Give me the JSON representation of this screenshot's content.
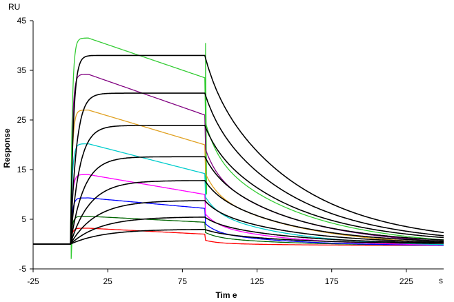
{
  "chart_data": {
    "type": "line",
    "title": "",
    "xlabel": "Tim e",
    "ylabel": "Response",
    "x_unit": "s",
    "y_unit": "RU",
    "xlim": [
      -25,
      250
    ],
    "ylim": [
      -5,
      45
    ],
    "x_ticks": [
      -25,
      25,
      75,
      125,
      175,
      225
    ],
    "y_ticks": [
      -5,
      5,
      15,
      25,
      35,
      45
    ],
    "grid": false,
    "legend": "none",
    "injection": {
      "start": 0,
      "end": 90,
      "baseline": 0
    },
    "series": [
      {
        "color": "#ff0000",
        "model": {
          "peak": 3.2,
          "peak_time": 12,
          "end_assoc": 2.0,
          "dissoc_jump": 1.2,
          "fast_amp": 0.6,
          "fast_tau": 8,
          "slow_tau": 55,
          "end": -0.3
        }
      },
      {
        "color": "#006400",
        "model": {
          "peak": 5.6,
          "peak_time": 12,
          "end_assoc": 4.4,
          "dissoc_jump": 2.0,
          "fast_amp": 1.0,
          "fast_tau": 8,
          "slow_tau": 55,
          "end": -0.3
        }
      },
      {
        "color": "#0000ff",
        "model": {
          "peak": 9.3,
          "peak_time": 12,
          "end_assoc": 7.2,
          "dissoc_jump": 3.0,
          "fast_amp": 1.8,
          "fast_tau": 8,
          "slow_tau": 55,
          "end": -0.4
        }
      },
      {
        "color": "#ff00ff",
        "model": {
          "peak": 14.0,
          "peak_time": 12,
          "end_assoc": 10.0,
          "dissoc_jump": 3.8,
          "fast_amp": 2.2,
          "fast_tau": 8,
          "slow_tau": 55,
          "end": -0.4
        }
      },
      {
        "color": "#00cccc",
        "model": {
          "peak": 20.2,
          "peak_time": 12,
          "end_assoc": 14.2,
          "dissoc_jump": 4.5,
          "fast_amp": 3.0,
          "fast_tau": 8,
          "slow_tau": 55,
          "end": -0.5
        }
      },
      {
        "color": "#e0a020",
        "model": {
          "peak": 27.0,
          "peak_time": 12,
          "end_assoc": 20.0,
          "dissoc_jump": 5.5,
          "fast_amp": 4.0,
          "fast_tau": 8,
          "slow_tau": 60,
          "end": -0.5
        }
      },
      {
        "color": "#800080",
        "model": {
          "peak": 34.2,
          "peak_time": 12,
          "end_assoc": 26.0,
          "dissoc_jump": 6.5,
          "fast_amp": 5.0,
          "fast_tau": 8,
          "slow_tau": 60,
          "end": -0.5
        }
      },
      {
        "color": "#33cc33",
        "model": {
          "peak": 41.5,
          "peak_time": 12,
          "end_assoc": 33.5,
          "dissoc_jump": 8.5,
          "fast_amp": 6.5,
          "fast_tau": 8,
          "slow_tau": 62,
          "end": -0.6
        }
      }
    ],
    "fits": [
      {
        "color": "#000000",
        "model": {
          "plateau": 3.0,
          "tau": 22,
          "fast_amp": 0.5,
          "fast_tau": 8,
          "slow_tau": 55
        }
      },
      {
        "color": "#000000",
        "model": {
          "plateau": 5.5,
          "tau": 20,
          "fast_amp": 1.0,
          "fast_tau": 8,
          "slow_tau": 55
        }
      },
      {
        "color": "#000000",
        "model": {
          "plateau": 8.8,
          "tau": 17,
          "fast_amp": 1.6,
          "fast_tau": 8,
          "slow_tau": 55
        }
      },
      {
        "color": "#000000",
        "model": {
          "plateau": 12.8,
          "tau": 13,
          "fast_amp": 2.0,
          "fast_tau": 8,
          "slow_tau": 55
        }
      },
      {
        "color": "#000000",
        "model": {
          "plateau": 17.6,
          "tau": 9,
          "fast_amp": 2.6,
          "fast_tau": 8,
          "slow_tau": 55
        }
      },
      {
        "color": "#000000",
        "model": {
          "plateau": 23.9,
          "tau": 6,
          "fast_amp": 3.2,
          "fast_tau": 8,
          "slow_tau": 58
        }
      },
      {
        "color": "#000000",
        "model": {
          "plateau": 30.4,
          "tau": 4,
          "fast_amp": 3.8,
          "fast_tau": 8,
          "slow_tau": 58
        }
      },
      {
        "color": "#000000",
        "model": {
          "plateau": 38.0,
          "tau": 2,
          "fast_amp": 4.6,
          "fast_tau": 8,
          "slow_tau": 60
        }
      }
    ]
  }
}
